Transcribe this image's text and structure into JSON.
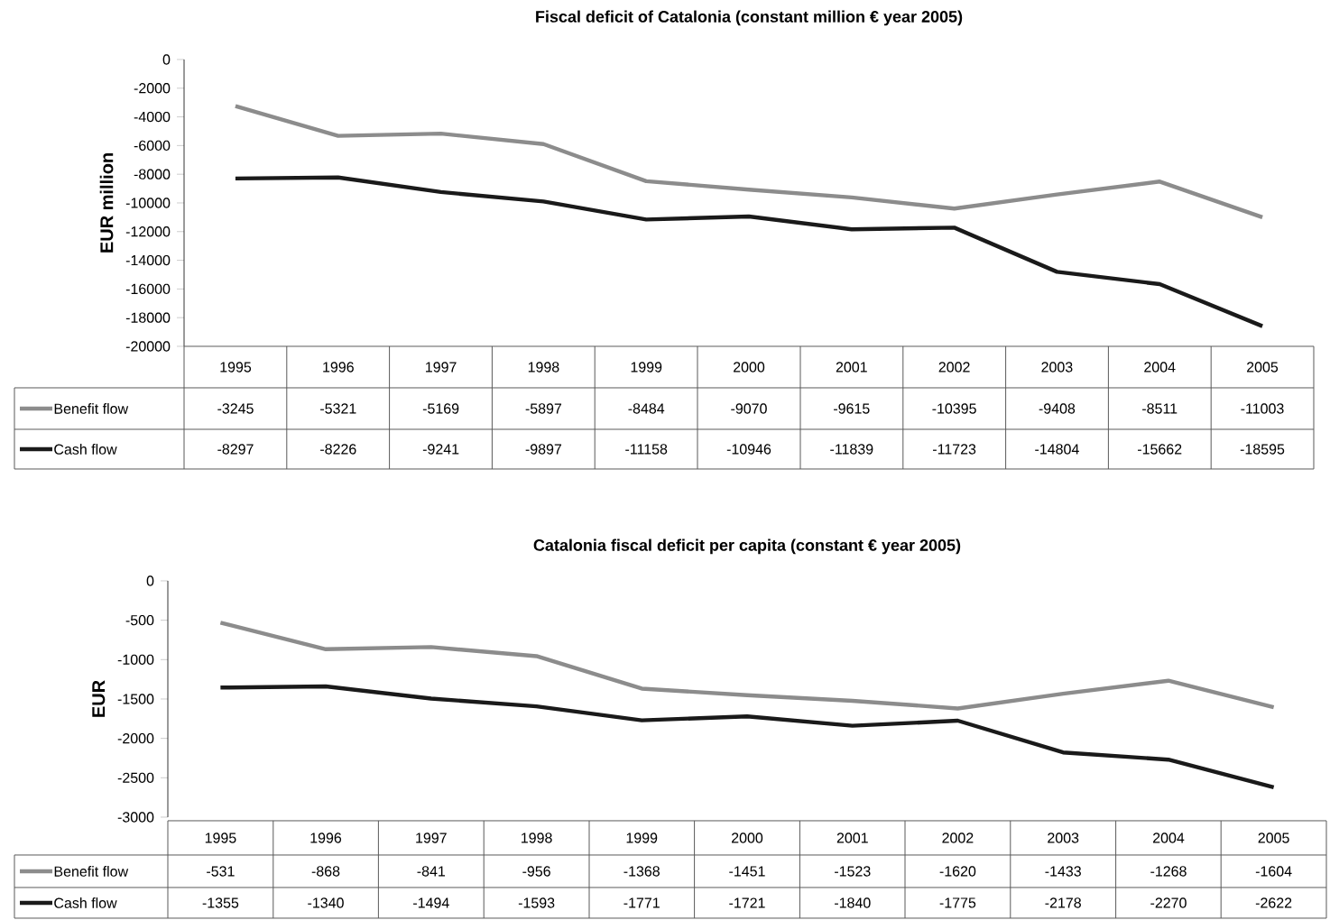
{
  "chart_data": [
    {
      "type": "line",
      "title": "Fiscal deficit of Catalonia (constant million € year 2005)",
      "ylabel": "EUR million",
      "categories": [
        "1995",
        "1996",
        "1997",
        "1998",
        "1999",
        "2000",
        "2001",
        "2002",
        "2003",
        "2004",
        "2005"
      ],
      "series": [
        {
          "name": "Benefit flow",
          "color": "#8c8c8c",
          "values": [
            -3245,
            -5321,
            -5169,
            -5897,
            -8484,
            -9070,
            -9615,
            -10395,
            -9408,
            -8511,
            -11003
          ]
        },
        {
          "name": "Cash flow",
          "color": "#1a1a1a",
          "values": [
            -8297,
            -8226,
            -9241,
            -9897,
            -11158,
            -10946,
            -11839,
            -11723,
            -14804,
            -15662,
            -18595
          ]
        }
      ],
      "ylim": [
        -20000,
        0
      ],
      "yticks": [
        -20000,
        -18000,
        -16000,
        -14000,
        -12000,
        -10000,
        -8000,
        -6000,
        -4000,
        -2000,
        0
      ],
      "legend": "bottom",
      "data_labels": true
    },
    {
      "type": "line",
      "title": "Catalonia fiscal deficit per capita (constant € year 2005)",
      "ylabel": "EUR",
      "categories": [
        "1995",
        "1996",
        "1997",
        "1998",
        "1999",
        "2000",
        "2001",
        "2002",
        "2003",
        "2004",
        "2005"
      ],
      "series": [
        {
          "name": "Benefit flow",
          "color": "#8c8c8c",
          "values": [
            -531,
            -868,
            -841,
            -956,
            -1368,
            -1451,
            -1523,
            -1620,
            -1433,
            -1268,
            -1604
          ]
        },
        {
          "name": "Cash flow",
          "color": "#1a1a1a",
          "values": [
            -1355,
            -1340,
            -1494,
            -1593,
            -1771,
            -1721,
            -1840,
            -1775,
            -2178,
            -2270,
            -2622
          ]
        }
      ],
      "ylim": [
        -3000,
        0
      ],
      "yticks": [
        -3000,
        -2500,
        -2000,
        -1500,
        -1000,
        -500,
        0
      ],
      "legend": "bottom",
      "data_labels": true
    }
  ]
}
